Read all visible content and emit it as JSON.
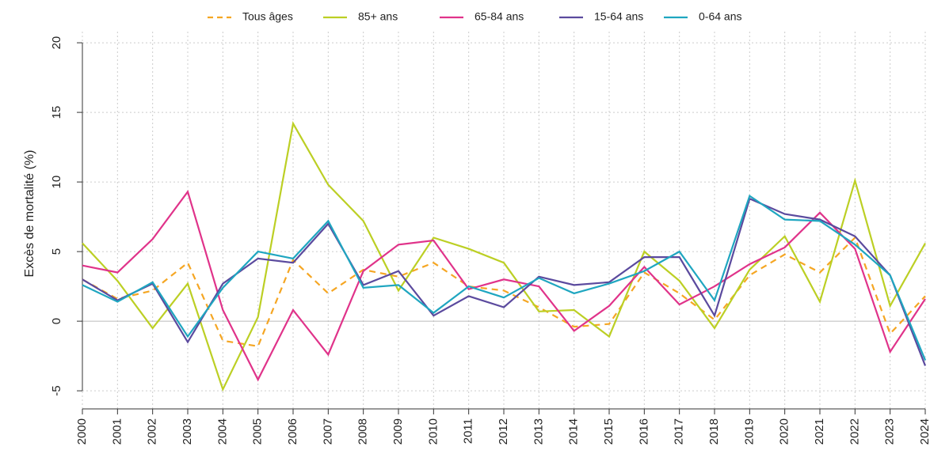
{
  "chart_data": {
    "type": "line",
    "y_label": "Excès de mortalité (%)",
    "x": [
      2000,
      2001,
      2002,
      2003,
      2004,
      2005,
      2006,
      2007,
      2008,
      2009,
      2010,
      2011,
      2012,
      2013,
      2014,
      2015,
      2016,
      2017,
      2018,
      2019,
      2020,
      2021,
      2022,
      2023,
      2024
    ],
    "xlim": [
      2000,
      2024
    ],
    "xticks": [
      2000,
      2001,
      2002,
      2003,
      2004,
      2005,
      2006,
      2007,
      2008,
      2009,
      2010,
      2011,
      2012,
      2013,
      2014,
      2015,
      2016,
      2017,
      2018,
      2019,
      2020,
      2021,
      2022,
      2023,
      2024
    ],
    "ylim": [
      -6.3,
      20.8
    ],
    "yticks": [
      -5,
      0,
      5,
      10,
      15,
      20
    ],
    "grid": true,
    "legend": "top",
    "series": [
      {
        "name": "Tous âges",
        "color": "#f5a623",
        "linestyle": "dashed",
        "values": [
          3.0,
          1.6,
          2.2,
          4.2,
          -1.4,
          -1.8,
          4.4,
          2.0,
          3.7,
          3.2,
          4.2,
          2.5,
          2.2,
          1.0,
          -0.4,
          -0.2,
          3.5,
          2.0,
          0.1,
          3.3,
          4.8,
          3.5,
          6.0,
          -0.9,
          1.8
        ]
      },
      {
        "name": "85+ ans",
        "color": "#bccf24",
        "linestyle": "solid",
        "values": [
          5.6,
          2.9,
          -0.5,
          2.7,
          -4.9,
          0.3,
          14.2,
          9.8,
          7.2,
          2.2,
          6.0,
          5.2,
          4.2,
          0.7,
          0.8,
          -1.1,
          5.0,
          2.9,
          -0.5,
          3.7,
          6.1,
          1.4,
          10.1,
          1.1,
          5.6
        ]
      },
      {
        "name": "65-84 ans",
        "color": "#e0338a",
        "linestyle": "solid",
        "values": [
          4.0,
          3.5,
          5.9,
          9.3,
          0.8,
          -4.2,
          0.8,
          -2.4,
          3.6,
          5.5,
          5.8,
          2.3,
          3.0,
          2.5,
          -0.7,
          1.1,
          3.9,
          1.2,
          2.5,
          4.1,
          5.3,
          7.8,
          5.2,
          -2.2,
          1.6
        ]
      },
      {
        "name": "15-64 ans",
        "color": "#5b4a9e",
        "linestyle": "solid",
        "values": [
          3.0,
          1.5,
          2.7,
          -1.5,
          2.7,
          4.5,
          4.2,
          7.0,
          2.6,
          3.6,
          0.4,
          1.8,
          1.0,
          3.2,
          2.6,
          2.8,
          4.6,
          4.6,
          0.4,
          8.8,
          7.7,
          7.3,
          6.1,
          3.3,
          -3.2
        ]
      },
      {
        "name": "0-64 ans",
        "color": "#1fa6c0",
        "linestyle": "solid",
        "values": [
          2.6,
          1.4,
          2.8,
          -1.1,
          2.4,
          5.0,
          4.5,
          7.2,
          2.4,
          2.6,
          0.6,
          2.5,
          1.7,
          3.1,
          2.0,
          2.7,
          3.6,
          5.0,
          1.5,
          9.0,
          7.3,
          7.2,
          5.5,
          3.3,
          -2.8
        ]
      }
    ]
  }
}
